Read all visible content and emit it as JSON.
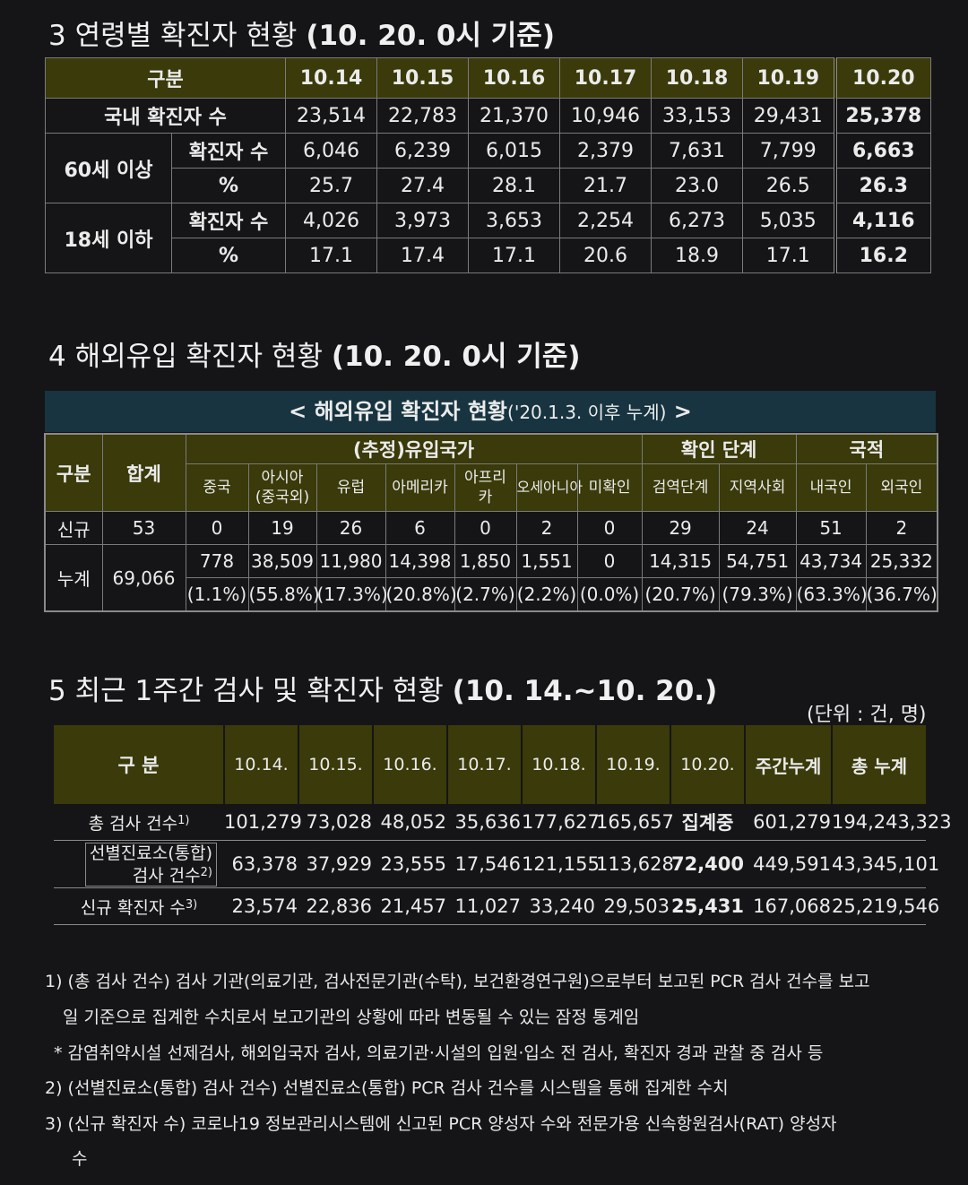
{
  "s3": {
    "title": "3  연령별 확진자 현황",
    "title_bold": "(10. 20. 0시 기준)",
    "head": [
      "구분",
      "10.14",
      "10.15",
      "10.16",
      "10.17",
      "10.18",
      "10.19",
      "10.20"
    ],
    "domestic_label": "국내 확진자 수",
    "domestic": [
      "23,514",
      "22,783",
      "21,370",
      "10,946",
      "33,153",
      "29,431",
      "25,378"
    ],
    "over60_label": "60세 이상",
    "cases_label": "확진자 수",
    "pct_label": "%",
    "over60_cases": [
      "6,046",
      "6,239",
      "6,015",
      "2,379",
      "7,631",
      "7,799",
      "6,663"
    ],
    "over60_pct": [
      "25.7",
      "27.4",
      "28.1",
      "21.7",
      "23.0",
      "26.5",
      "26.3"
    ],
    "under18_label": "18세 이하",
    "under18_cases": [
      "4,026",
      "3,973",
      "3,653",
      "2,254",
      "6,273",
      "5,035",
      "4,116"
    ],
    "under18_pct": [
      "17.1",
      "17.4",
      "17.1",
      "20.6",
      "18.9",
      "17.1",
      "16.2"
    ]
  },
  "s4": {
    "title": "4  해외유입 확진자 현황",
    "title_bold": "(10. 20. 0시 기준)",
    "caption_bold": "< 해외유입 확진자 현황",
    "caption_normal": "('20.1.3. 이후 누계)",
    "caption_end": ">",
    "h_category": "구분",
    "h_total": "합계",
    "h_country": "(추정)유입국가",
    "h_stage": "확인 단계",
    "h_nationality": "국적",
    "sub": [
      "중국",
      "아시아",
      "(중국외)",
      "유럽",
      "아메리카",
      "아프리",
      "카",
      "오세아니아",
      "미확인",
      "검역단계",
      "지역사회",
      "내국인",
      "외국인"
    ],
    "new_label": "신규",
    "new": [
      "53",
      "0",
      "19",
      "26",
      "6",
      "0",
      "2",
      "0",
      "29",
      "24",
      "51",
      "2"
    ],
    "cum_label": "누계",
    "cum_total": "69,066",
    "cum": [
      "778",
      "38,509",
      "11,980",
      "14,398",
      "1,850",
      "1,551",
      "0",
      "14,315",
      "54,751",
      "43,734",
      "25,332"
    ],
    "cum_pct": [
      "(1.1%)",
      "(55.8%)",
      "(17.3%)",
      "(20.8%)",
      "(2.7%)",
      "(2.2%)",
      "(0.0%)",
      "(20.7%)",
      "(79.3%)",
      "(63.3%)",
      "(36.7%)"
    ]
  },
  "s5": {
    "title": "5  최근 1주간 검사 및 확진자 현황",
    "title_bold": "(10. 14.~10. 20.)",
    "unit": "(단위 : 건, 명)",
    "head": [
      "구 분",
      "10.14.",
      "10.15.",
      "10.16.",
      "10.17.",
      "10.18.",
      "10.19.",
      "10.20.",
      "주간누계",
      "총 누계"
    ],
    "tests_label": "총 검사 건수",
    "tests_sup": "1)",
    "tests": [
      "101,279",
      "73,028",
      "48,052",
      "35,636",
      "177,627",
      "165,657",
      "집계중",
      "601,279",
      "194,243,323"
    ],
    "clinic_label1": "선별진료소(통합)",
    "clinic_label2": "검사 건수",
    "clinic_sup": "2)",
    "clinic": [
      "63,378",
      "37,929",
      "23,555",
      "17,546",
      "121,155",
      "113,628",
      "72,400",
      "449,591",
      "43,345,101"
    ],
    "new_label": "신규 확진자 수",
    "new_sup": "3)",
    "new": [
      "23,574",
      "22,836",
      "21,457",
      "11,027",
      "33,240",
      "29,503",
      "25,431",
      "167,068",
      "25,219,546"
    ]
  },
  "notes": {
    "n1a": "1) (총 검사 건수) 검사 기관(의료기관, 검사전문기관(수탁), 보건환경연구원)으로부터 보고된 PCR 검사 건수를 보고",
    "n1b": "일 기준으로 집계한 수치로서 보고기관의 상황에 따라 변동될 수 있는 잠정 통계임",
    "n1c": "* 감염취약시설 선제검사, 해외입국자 검사, 의료기관·시설의 입원·입소 전 검사, 확진자 경과 관찰 중 검사 등",
    "n2": "2) (선별진료소(통합) 검사 건수) 선별진료소(통합) PCR 검사 건수를 시스템을 통해 집계한 수치",
    "n3a": "3) (신규 확진자 수) 코로나19 정보관리시스템에 신고된 PCR 양성자 수와 전문가용 신속항원검사(RAT) 양성자",
    "n3b": "수"
  }
}
